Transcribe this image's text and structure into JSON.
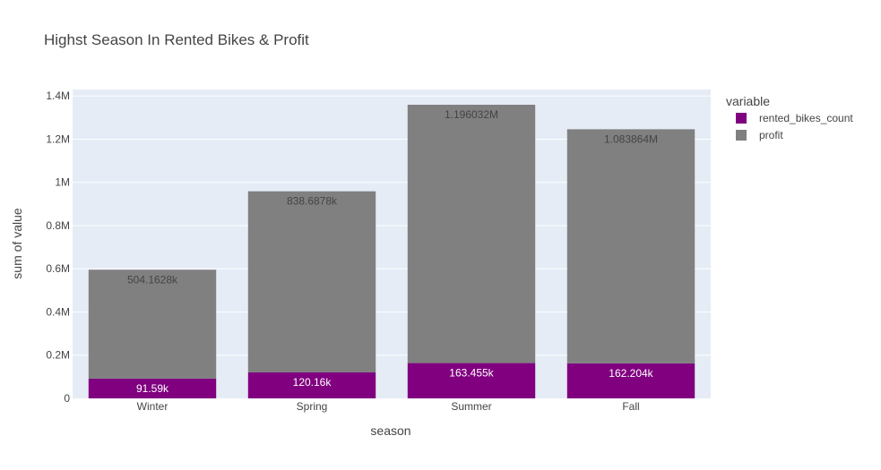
{
  "chart_data": {
    "type": "bar",
    "barmode": "stack",
    "title": "Highst Season In Rented Bikes & Profit",
    "xlabel": "season",
    "ylabel": "sum of value",
    "categories": [
      "Winter",
      "Spring",
      "Summer",
      "Fall"
    ],
    "ylim": [
      0,
      1430000
    ],
    "yticks": [
      0,
      200000,
      400000,
      600000,
      800000,
      1000000,
      1200000,
      1400000
    ],
    "ytick_labels": [
      "0",
      "0.2M",
      "0.4M",
      "0.6M",
      "0.8M",
      "1M",
      "1.2M",
      "1.4M"
    ],
    "grid": true,
    "legend": {
      "title": "variable",
      "placement": "top-right"
    },
    "series": [
      {
        "name": "rented_bikes_count",
        "color": "#800080",
        "label_color": "#ffffff",
        "values": [
          91590,
          120160,
          163455,
          162204
        ],
        "labels": [
          "91.59k",
          "120.16k",
          "163.455k",
          "162.204k"
        ]
      },
      {
        "name": "profit",
        "color": "#808080",
        "label_color": "#444444",
        "values": [
          504162.8,
          838687.8,
          1196032,
          1083864
        ],
        "labels": [
          "504.1628k",
          "838.6878k",
          "1.196032M",
          "1.083864M"
        ]
      }
    ]
  },
  "colors": {
    "plot_bg": "#E5ECF6",
    "grid": "#ffffff",
    "text": "#444444"
  }
}
